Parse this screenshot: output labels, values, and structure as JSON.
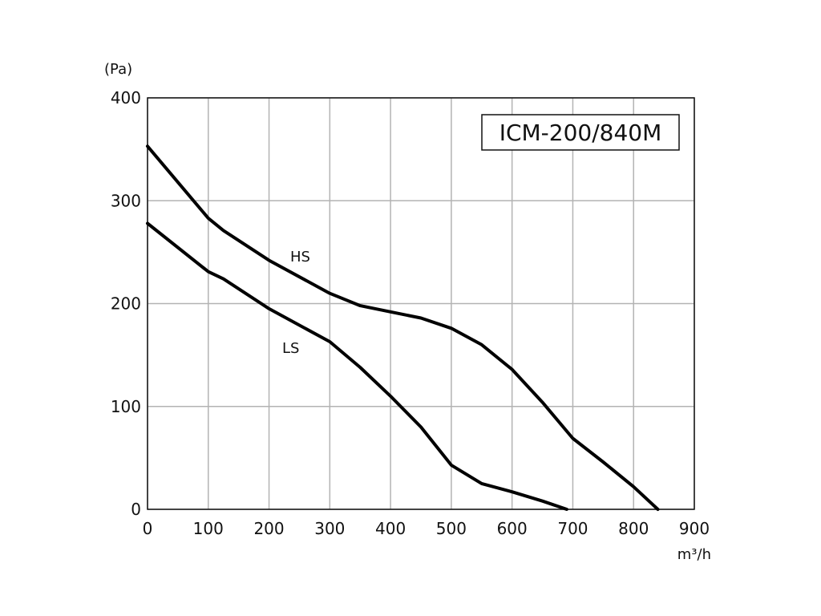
{
  "chart_data": {
    "type": "line",
    "title": "ICM-200/840M",
    "xlabel": "m³/h",
    "ylabel": "(Pa)",
    "xlim": [
      0,
      900
    ],
    "ylim": [
      0,
      400
    ],
    "x_ticks": [
      0,
      100,
      200,
      300,
      400,
      500,
      600,
      700,
      800,
      900
    ],
    "y_ticks": [
      0,
      100,
      200,
      300,
      400
    ],
    "grid": true,
    "legend": "none",
    "series": [
      {
        "name": "HS",
        "x": [
          0,
          100,
          125,
          200,
          300,
          350,
          400,
          450,
          500,
          550,
          600,
          650,
          700,
          750,
          800,
          840
        ],
        "y": [
          353,
          283,
          271,
          242,
          210,
          198,
          192,
          186,
          176,
          160,
          136,
          104,
          69,
          46,
          22,
          0
        ]
      },
      {
        "name": "LS",
        "x": [
          0,
          100,
          125,
          200,
          300,
          350,
          400,
          450,
          500,
          550,
          600,
          650,
          690
        ],
        "y": [
          278,
          231,
          224,
          195,
          163,
          138,
          110,
          80,
          43,
          25,
          17,
          8,
          0
        ]
      }
    ]
  }
}
